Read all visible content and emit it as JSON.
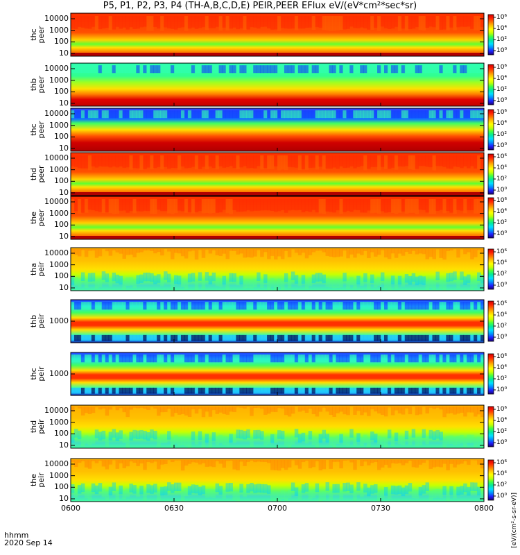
{
  "title": "P5, P1, P2, P3, P4 (TH-A,B,C,D,E) PEIR,PEER EFlux eV/(eV*cm²*sec*sr)",
  "footer": {
    "hhmm": "hhmm",
    "date": "2020 Sep 14"
  },
  "colorbar_units": "[eV/(cm²-s-sr-eV)]",
  "chart_data": {
    "type": "heatmap",
    "x_ticks": [
      "0600",
      "0630",
      "0700",
      "0730",
      "0800"
    ],
    "panels": [
      {
        "label": [
          "thc",
          "peer"
        ],
        "yticks": [
          "10",
          "100",
          "1000",
          "10000"
        ],
        "cb_ticks": [
          "10⁰",
          "10²",
          "10⁴",
          "10⁶"
        ],
        "species": "e"
      },
      {
        "label": [
          "thb",
          "peer"
        ],
        "yticks": [
          "10",
          "100",
          "1000",
          "10000"
        ],
        "cb_ticks": [
          "10⁰",
          "10²",
          "10⁴",
          "10⁶"
        ],
        "species": "e"
      },
      {
        "label": [
          "thc",
          "peer"
        ],
        "yticks": [
          "10",
          "100",
          "1000",
          "10000"
        ],
        "cb_ticks": [
          "10⁰",
          "10²",
          "10⁴",
          "10⁶"
        ],
        "species": "e"
      },
      {
        "label": [
          "thd",
          "peer"
        ],
        "yticks": [
          "10",
          "100",
          "1000",
          "10000"
        ],
        "cb_ticks": [
          "10⁰",
          "10²",
          "10⁴",
          "10⁶"
        ],
        "species": "e"
      },
      {
        "label": [
          "the",
          "peer"
        ],
        "yticks": [
          "10",
          "100",
          "1000",
          "10000"
        ],
        "cb_ticks": [
          "10⁰",
          "10²",
          "10⁴",
          "10⁶"
        ],
        "species": "e"
      },
      {
        "label": [
          "tha",
          "peir"
        ],
        "yticks": [
          "10",
          "100",
          "1000",
          "10000"
        ],
        "cb_ticks": [
          "10⁰",
          "10²",
          "10⁴",
          "10⁶"
        ],
        "species": "i"
      },
      {
        "label": [
          "thb",
          "peir"
        ],
        "yticks": [
          "1000"
        ],
        "cb_ticks": [
          "10⁰",
          "10²",
          "10⁴",
          "10⁶"
        ],
        "species": "ib"
      },
      {
        "label": [
          "thc",
          "peir"
        ],
        "yticks": [
          "1000"
        ],
        "cb_ticks": [
          "10⁰",
          "10²",
          "10⁴",
          "10⁶"
        ],
        "species": "ib"
      },
      {
        "label": [
          "thd",
          "peir"
        ],
        "yticks": [
          "10",
          "100",
          "1000",
          "10000"
        ],
        "cb_ticks": [
          "10⁰",
          "10²",
          "10⁴",
          "10⁶"
        ],
        "species": "i"
      },
      {
        "label": [
          "the",
          "peir"
        ],
        "yticks": [
          "10",
          "100",
          "1000",
          "10000"
        ],
        "cb_ticks": [
          "10⁰",
          "10²",
          "10⁴",
          "10⁶"
        ],
        "species": "i"
      }
    ]
  }
}
